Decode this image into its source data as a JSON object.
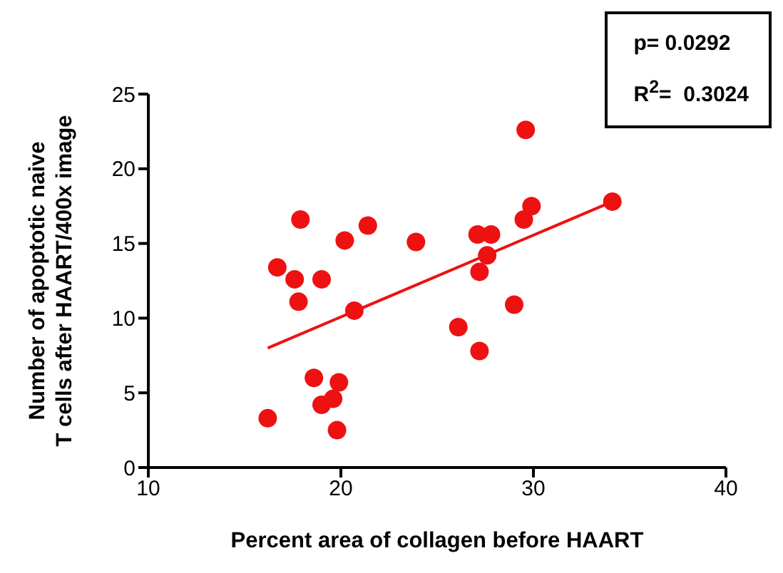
{
  "chart_data": {
    "type": "scatter",
    "xlabel": "Percent area of collagen before HAART",
    "ylabel": "Number of apoptotic naive\nT cells after HAART/400x image",
    "annotations": [
      "p= 0.0292",
      "R$^{2}$=  0.3024"
    ],
    "series": [
      {
        "color": "#ee1111",
        "marker": "circle",
        "x": [
          16.2,
          16.7,
          17.6,
          17.8,
          17.9,
          18.6,
          19.0,
          19.0,
          19.6,
          19.8,
          19.9,
          20.2,
          20.7,
          21.4,
          23.9,
          26.1,
          27.1,
          27.2,
          27.2,
          27.6,
          27.8,
          29.0,
          29.5,
          29.6,
          29.9,
          34.1
        ],
        "values": [
          3.3,
          13.4,
          12.6,
          11.1,
          16.6,
          6.0,
          4.2,
          12.6,
          4.6,
          2.5,
          5.7,
          15.2,
          10.5,
          16.2,
          15.1,
          9.4,
          15.6,
          13.1,
          7.8,
          14.2,
          15.6,
          10.9,
          16.6,
          22.6,
          17.5,
          17.8
        ]
      },
      {
        "type": "line",
        "color": "#ee1111",
        "line_style": "solid",
        "x": [
          16.2,
          34.1
        ],
        "values": [
          8.0,
          17.8
        ]
      }
    ],
    "xlim": [
      10,
      40
    ],
    "xticks": [
      10,
      20,
      30,
      40
    ],
    "ylim": [
      0,
      25
    ],
    "yticks": [
      0,
      5,
      10,
      15,
      20,
      25
    ],
    "grid": false
  }
}
